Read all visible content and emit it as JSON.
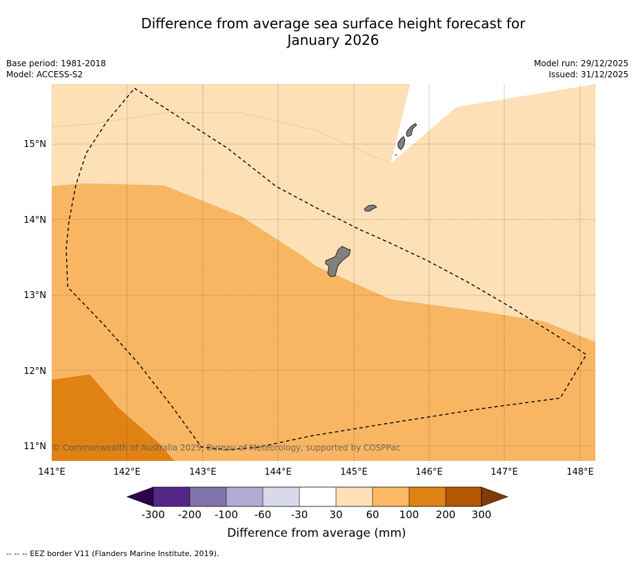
{
  "header": {
    "title_line1": "Difference from average sea surface height forecast for",
    "title_line2": "January 2026",
    "base_period": "Base period: 1981-2018",
    "model": "Model: ACCESS-S2",
    "model_run": "Model run: 29/12/2025",
    "issued": "Issued: 31/12/2025"
  },
  "map": {
    "lat_labels": [
      "15°N",
      "14°N",
      "13°N",
      "12°N",
      "11°N"
    ],
    "lon_labels": [
      "141°E",
      "142°E",
      "143°E",
      "144°E",
      "145°E",
      "146°E",
      "147°E",
      "148°E"
    ],
    "copyright": "© Commonwealth of Australia 2025, Bureau of Meteorology, supported by COSPPac",
    "colors": {
      "band_30_60": "#fde0b6",
      "band_60_100": "#f9b662",
      "band_100_200": "#e08214",
      "band_neg30_30": "#ffffff",
      "land": "#808080"
    }
  },
  "colorbar": {
    "ticks": [
      "-300",
      "-200",
      "-100",
      "-60",
      "-30",
      "30",
      "60",
      "100",
      "200",
      "300"
    ],
    "label": "Difference from average (mm)",
    "colors": [
      "#2d004b",
      "#542788",
      "#8073ac",
      "#b2abd2",
      "#d8daeb",
      "#ffffff",
      "#fee0b6",
      "#fdb863",
      "#e08214",
      "#b35806",
      "#7f3b08"
    ]
  },
  "footnote": "--  --  -- EEZ border V11 (Flanders Marine Institute, 2019)."
}
